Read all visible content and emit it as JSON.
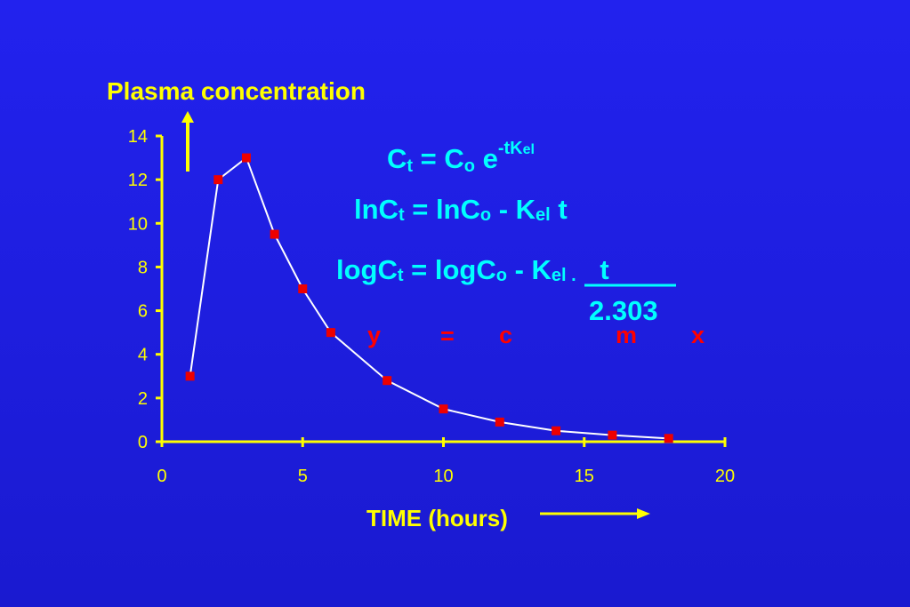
{
  "chart_data": {
    "type": "line",
    "y_label": "Plasma concentration",
    "x_label": "TIME (hours)",
    "x": [
      1,
      2,
      3,
      4,
      5,
      6,
      8,
      10,
      12,
      14,
      16,
      18
    ],
    "values": [
      3,
      12,
      13,
      9.5,
      7,
      5,
      2.8,
      1.5,
      0.9,
      0.5,
      0.3,
      0.15
    ],
    "marker_color": "#ee0000",
    "line_color": "#ffffff",
    "axis_color": "#ffff00",
    "xlim": [
      0,
      20
    ],
    "xticks": [
      0,
      5,
      10,
      15,
      20
    ],
    "ylim": [
      0,
      14
    ],
    "yticks": [
      0,
      2,
      4,
      6,
      8,
      10,
      12,
      14
    ],
    "annotations": {
      "eq1": [
        "C",
        "t",
        " = C",
        "o",
        " e",
        "-tK",
        "el"
      ],
      "eq2": [
        "lnC",
        "t",
        " =  lnC",
        "o",
        " - K",
        "el",
        " t"
      ],
      "eq3": [
        "logC",
        "t",
        " =  logC",
        "o",
        " - ",
        "K",
        "el .",
        " t"
      ],
      "denominator": "2.303",
      "terms": [
        "y",
        "=",
        "c",
        "m",
        "x"
      ]
    }
  }
}
